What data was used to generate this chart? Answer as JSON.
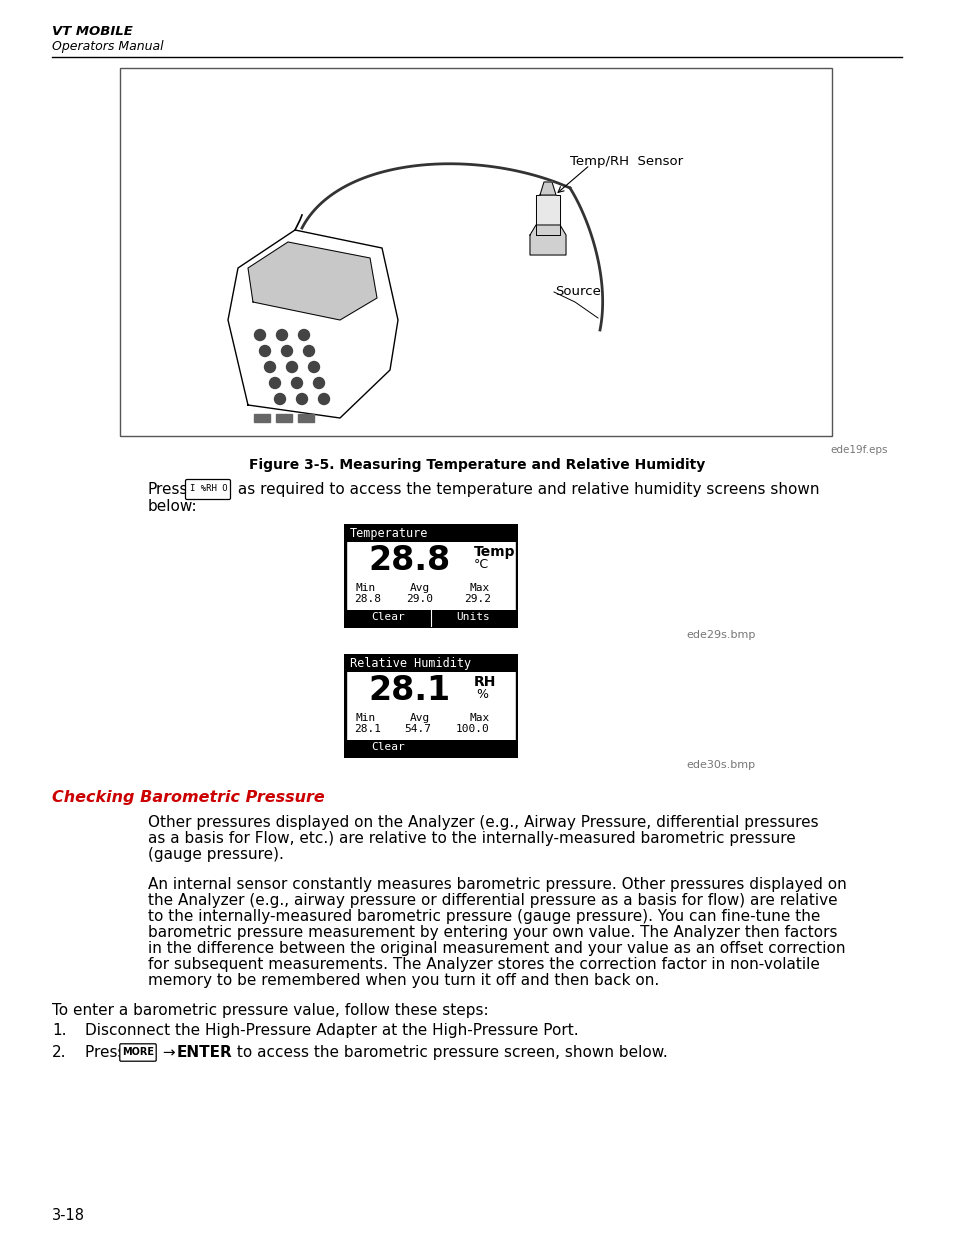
{
  "bg_color": "#ffffff",
  "header_bold": "VT MOBILE",
  "header_sub": "Operators Manual",
  "figure_caption": "Figure 3-5. Measuring Temperature and Relative Humidity",
  "figure_note_right": "ede19f.eps",
  "temp_screen_note": "ede29s.bmp",
  "rh_screen_note": "ede30s.bmp",
  "press_button": "I %RH O",
  "section_title": "Checking Barometric Pressure",
  "para1_lines": [
    "Other pressures displayed on the Analyzer (e.g., Airway Pressure, differential pressures",
    "as a basis for Flow, etc.) are relative to the internally-measured barometric pressure",
    "(gauge pressure)."
  ],
  "para2_lines": [
    "An internal sensor constantly measures barometric pressure. Other pressures displayed on",
    "the Analyzer (e.g., airway pressure or differential pressure as a basis for flow) are relative",
    "to the internally-measured barometric pressure (gauge pressure). You can fine-tune the",
    "barometric pressure measurement by entering your own value. The Analyzer then factors",
    "in the difference between the original measurement and your value as an offset correction",
    "for subsequent measurements. The Analyzer stores the correction factor in non-volatile",
    "memory to be remembered when you turn it off and then back on."
  ],
  "para3": "To enter a barometric pressure value, follow these steps:",
  "step1": "Disconnect the High-Pressure Adapter at the High-Pressure Port.",
  "step2_post": " to access the barometric pressure screen, shown below.",
  "page_number": "3-18"
}
